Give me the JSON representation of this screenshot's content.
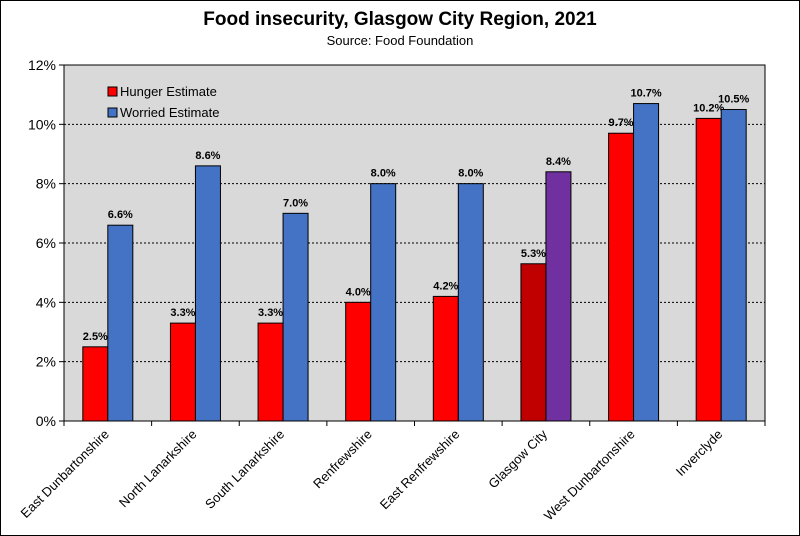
{
  "chart_data": {
    "type": "bar",
    "title": "Food insecurity, Glasgow City Region, 2021",
    "subtitle": "Source: Food Foundation",
    "categories": [
      "East Dunbartonshire",
      "North Lanarkshire",
      "South Lanarkshire",
      "Renfrewshire",
      "East Renfrewshire",
      "Glasgow City",
      "West Dunbartonshire",
      "Inverclyde"
    ],
    "series": [
      {
        "name": "Hunger Estimate",
        "color": "#ff0000",
        "values": [
          2.5,
          3.3,
          3.3,
          4.0,
          4.2,
          5.3,
          9.7,
          10.2
        ],
        "labels": [
          "2.5%",
          "3.3%",
          "3.3%",
          "4.0%",
          "4.2%",
          "5.3%",
          "9.7%",
          "10.2%"
        ],
        "highlight_color": "#c00000"
      },
      {
        "name": "Worried Estimate",
        "color": "#4472c4",
        "values": [
          6.6,
          8.6,
          7.0,
          8.0,
          8.0,
          8.4,
          10.7,
          10.5
        ],
        "labels": [
          "6.6%",
          "8.6%",
          "7.0%",
          "8.0%",
          "8.0%",
          "8.4%",
          "10.7%",
          "10.5%"
        ],
        "highlight_color": "#7030a0"
      }
    ],
    "highlight_category": "Glasgow City",
    "ylim": [
      0,
      12
    ],
    "yticks": [
      0,
      2,
      4,
      6,
      8,
      10,
      12
    ],
    "ytick_labels": [
      "0%",
      "2%",
      "4%",
      "6%",
      "8%",
      "10%",
      "12%"
    ],
    "grid": true,
    "legend": "top-left",
    "plot_background": "#d9d9d9"
  }
}
